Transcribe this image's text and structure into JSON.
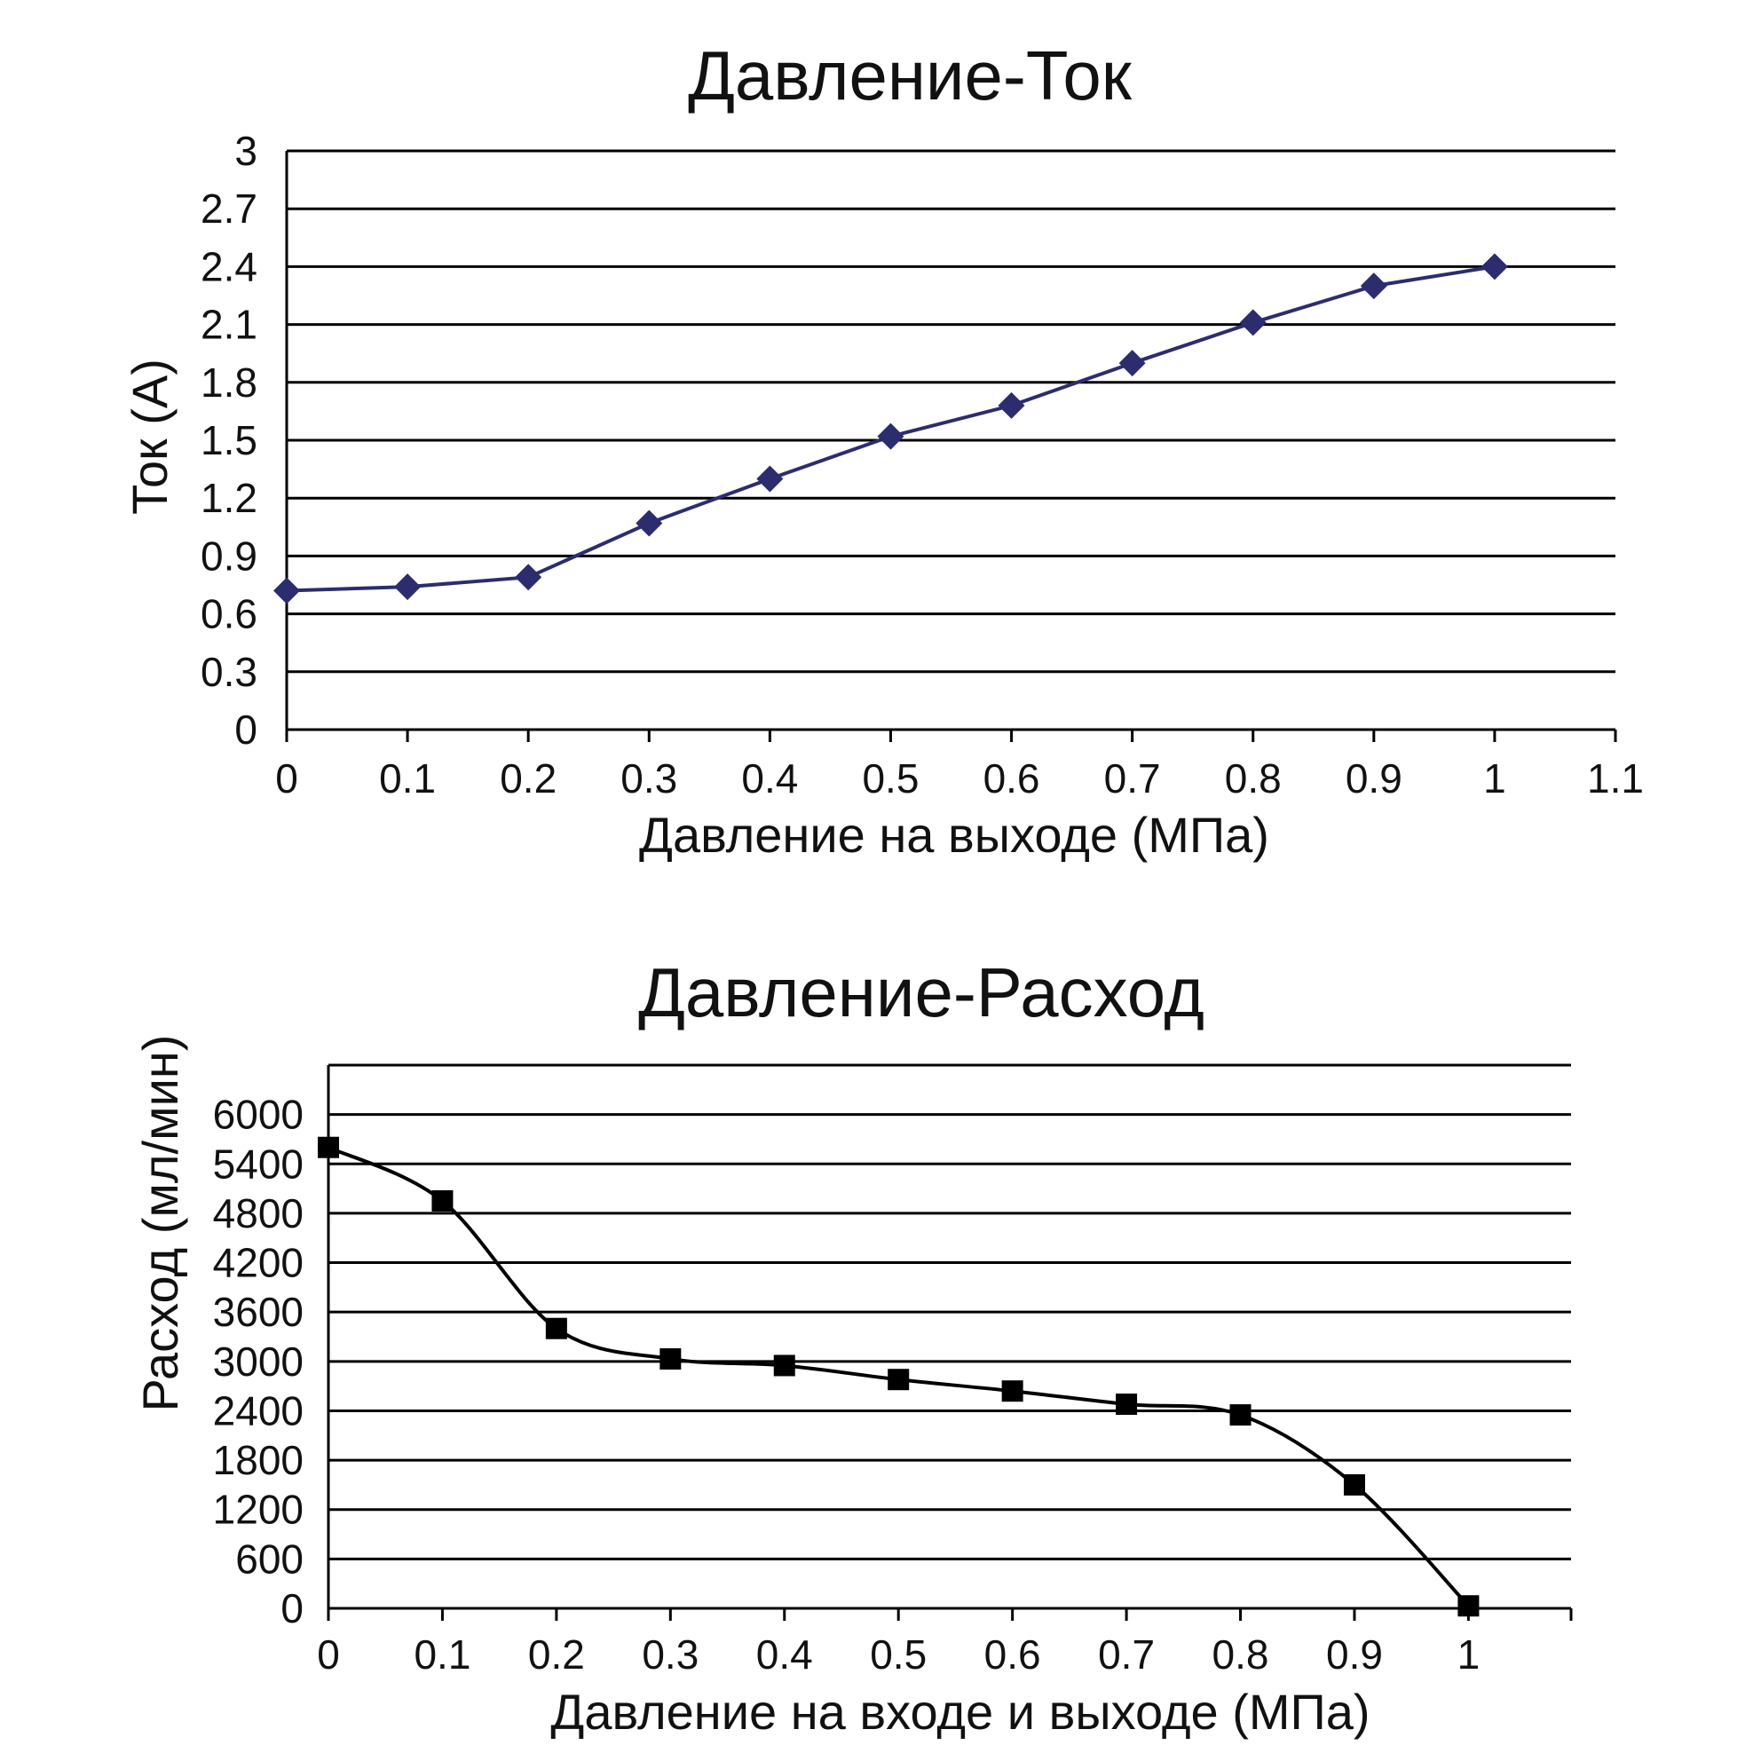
{
  "chart_data": [
    {
      "type": "line",
      "title": "Давление-Ток",
      "xlabel": "Давление на выходе (МПа)",
      "ylabel": "Ток (A)",
      "xlim": [
        0,
        1.1
      ],
      "ylim": [
        0,
        3
      ],
      "x_ticks": [
        "0",
        "0.1",
        "0.2",
        "0.3",
        "0.4",
        "0.5",
        "0.6",
        "0.7",
        "0.8",
        "0.9",
        "1",
        "1.1"
      ],
      "x_tick_values": [
        0,
        0.1,
        0.2,
        0.3,
        0.4,
        0.5,
        0.6,
        0.7,
        0.8,
        0.9,
        1,
        1.1
      ],
      "y_ticks": [
        "0",
        "0.3",
        "0.6",
        "0.9",
        "1.2",
        "1.5",
        "1.8",
        "2.1",
        "2.4",
        "2.7",
        "3"
      ],
      "y_tick_values": [
        0,
        0.3,
        0.6,
        0.9,
        1.2,
        1.5,
        1.8,
        2.1,
        2.4,
        2.7,
        3
      ],
      "grid": true,
      "marker": "diamond",
      "color": "#2b2d6e",
      "series": [
        {
          "x": [
            0,
            0.1,
            0.2,
            0.3,
            0.4,
            0.5,
            0.6,
            0.7,
            0.8,
            0.9,
            1.0
          ],
          "values": [
            0.72,
            0.74,
            0.79,
            1.07,
            1.3,
            1.52,
            1.68,
            1.9,
            2.11,
            2.3,
            2.4
          ]
        }
      ]
    },
    {
      "type": "line",
      "title": "Давление-Расход",
      "xlabel": "Давление на входе и выходе (МПа)",
      "ylabel": "Расход (мл/мин)",
      "xlim": [
        0,
        1.09
      ],
      "ylim": [
        0,
        6600
      ],
      "x_ticks": [
        "0",
        "0.1",
        "0.2",
        "0.3",
        "0.4",
        "0.5",
        "0.6",
        "0.7",
        "0.8",
        "0.9",
        "1"
      ],
      "x_tick_values": [
        0,
        0.1,
        0.2,
        0.3,
        0.4,
        0.5,
        0.6,
        0.7,
        0.8,
        0.9,
        1
      ],
      "y_ticks": [
        "0",
        "600",
        "1200",
        "1800",
        "2400",
        "3000",
        "3600",
        "4200",
        "4800",
        "5400",
        "6000"
      ],
      "y_tick_values": [
        0,
        600,
        1200,
        1800,
        2400,
        3000,
        3600,
        4200,
        4800,
        5400,
        6000
      ],
      "grid": true,
      "marker": "square",
      "smooth": true,
      "color": "#000000",
      "series": [
        {
          "x": [
            0,
            0.1,
            0.2,
            0.3,
            0.4,
            0.5,
            0.6,
            0.7,
            0.8,
            0.9,
            1.0
          ],
          "values": [
            5600,
            4950,
            3400,
            3030,
            2950,
            2780,
            2640,
            2480,
            2350,
            1500,
            30
          ]
        }
      ]
    }
  ]
}
